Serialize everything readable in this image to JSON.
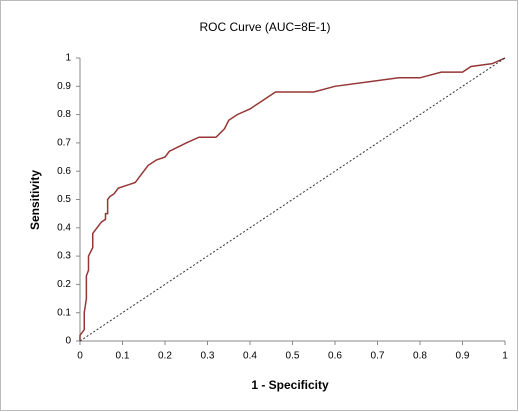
{
  "chart_data": {
    "type": "line",
    "title": "ROC Curve (AUC=8E-1)",
    "x_label": "1 - Specificity",
    "y_label": "Sensitivity",
    "xlim": [
      0,
      1
    ],
    "ylim": [
      0,
      1
    ],
    "xticks": [
      0,
      0.1,
      0.2,
      0.3,
      0.4,
      0.5,
      0.6,
      0.7,
      0.8,
      0.9,
      1
    ],
    "yticks": [
      0,
      0.1,
      0.2,
      0.3,
      0.4,
      0.5,
      0.6,
      0.7,
      0.8,
      0.9,
      1
    ],
    "series": [
      {
        "color": "#953735",
        "x": [
          0,
          0,
          0.01,
          0.01,
          0.015,
          0.015,
          0.02,
          0.02,
          0.03,
          0.03,
          0.04,
          0.05,
          0.06,
          0.06,
          0.065,
          0.065,
          0.07,
          0.08,
          0.09,
          0.11,
          0.13,
          0.14,
          0.15,
          0.16,
          0.18,
          0.2,
          0.21,
          0.25,
          0.28,
          0.32,
          0.34,
          0.35,
          0.37,
          0.4,
          0.43,
          0.46,
          0.55,
          0.6,
          0.7,
          0.75,
          0.8,
          0.85,
          0.9,
          0.92,
          0.97,
          1
        ],
        "values": [
          0,
          0.02,
          0.04,
          0.1,
          0.15,
          0.23,
          0.25,
          0.3,
          0.33,
          0.38,
          0.4,
          0.42,
          0.43,
          0.45,
          0.45,
          0.5,
          0.51,
          0.52,
          0.54,
          0.55,
          0.56,
          0.58,
          0.6,
          0.62,
          0.64,
          0.65,
          0.67,
          0.7,
          0.72,
          0.72,
          0.75,
          0.78,
          0.8,
          0.82,
          0.85,
          0.88,
          0.88,
          0.9,
          0.92,
          0.93,
          0.93,
          0.95,
          0.95,
          0.97,
          0.98,
          1
        ]
      },
      {
        "color": "#333333",
        "dashed": true,
        "x": [
          0,
          1
        ],
        "values": [
          0,
          1
        ]
      }
    ]
  }
}
